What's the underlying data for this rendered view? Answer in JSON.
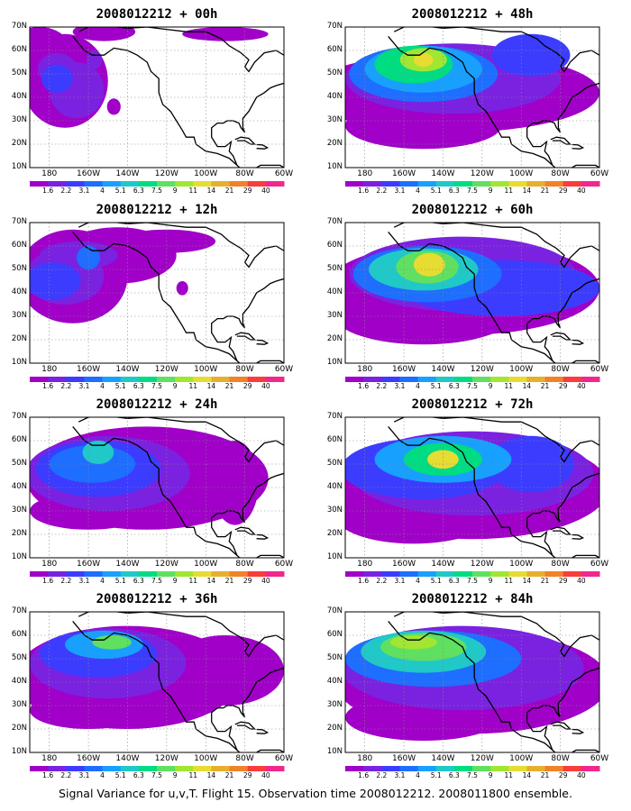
{
  "figure": {
    "caption": "Signal Variance for u,v,T. Flight 15. Observation time 2008012212. 2008011800 ensemble."
  },
  "chart_data": [
    {
      "type": "heatmap",
      "title": "2008012212 + 00h",
      "xlabel": "",
      "ylabel": "",
      "xlim": [
        -190,
        -60
      ],
      "ylim": [
        10,
        70
      ],
      "grid": true
    },
    {
      "type": "heatmap",
      "title": "2008012212 + 48h",
      "xlabel": "",
      "ylabel": "",
      "xlim": [
        -190,
        -60
      ],
      "ylim": [
        10,
        70
      ],
      "grid": true
    },
    {
      "type": "heatmap",
      "title": "2008012212 + 12h",
      "xlabel": "",
      "ylabel": "",
      "xlim": [
        -190,
        -60
      ],
      "ylim": [
        10,
        70
      ],
      "grid": true
    },
    {
      "type": "heatmap",
      "title": "2008012212 + 60h",
      "xlabel": "",
      "ylabel": "",
      "xlim": [
        -190,
        -60
      ],
      "ylim": [
        10,
        70
      ],
      "grid": true
    },
    {
      "type": "heatmap",
      "title": "2008012212 + 24h",
      "xlabel": "",
      "ylabel": "",
      "xlim": [
        -190,
        -60
      ],
      "ylim": [
        10,
        70
      ],
      "grid": true
    },
    {
      "type": "heatmap",
      "title": "2008012212 + 72h",
      "xlabel": "",
      "ylabel": "",
      "xlim": [
        -190,
        -60
      ],
      "ylim": [
        10,
        70
      ],
      "grid": true
    },
    {
      "type": "heatmap",
      "title": "2008012212 + 36h",
      "xlabel": "",
      "ylabel": "",
      "xlim": [
        -190,
        -60
      ],
      "ylim": [
        10,
        70
      ],
      "grid": true
    },
    {
      "type": "heatmap",
      "title": "2008012212 + 84h",
      "xlabel": "",
      "ylabel": "",
      "xlim": [
        -190,
        -60
      ],
      "ylim": [
        10,
        70
      ],
      "grid": true
    }
  ],
  "axes": {
    "lat_ticks": [
      "70N",
      "60N",
      "50N",
      "40N",
      "30N",
      "20N",
      "10N"
    ],
    "lat_values": [
      70,
      60,
      50,
      40,
      30,
      20,
      10
    ],
    "lon_ticks": [
      "180",
      "160W",
      "140W",
      "120W",
      "100W",
      "80W",
      "60W"
    ],
    "lon_values": [
      -180,
      -160,
      -140,
      -120,
      -100,
      -80,
      -60
    ]
  },
  "colorbar": {
    "labels": [
      "1.6",
      "2.2",
      "3.1",
      "4",
      "5.1",
      "6.3",
      "7.5",
      "9",
      "11",
      "14",
      "21",
      "29",
      "40"
    ],
    "colors": [
      "#a000c8",
      "#7a22e0",
      "#3c3cff",
      "#1e6eff",
      "#18a0ff",
      "#20c8c8",
      "#00dc82",
      "#60e060",
      "#a0e632",
      "#e6dc32",
      "#e6af2d",
      "#f08228",
      "#fa3c3c",
      "#f0288c"
    ]
  },
  "panels": [
    {
      "blobs": [
        {
          "lon": -172,
          "lat": 47,
          "rx": 22,
          "ry": 20,
          "level": 0
        },
        {
          "lon": -185,
          "lat": 60,
          "rx": 16,
          "ry": 10,
          "level": 0
        },
        {
          "lon": -152,
          "lat": 68,
          "rx": 16,
          "ry": 4,
          "level": 0
        },
        {
          "lon": -166,
          "lat": 43,
          "rx": 14,
          "ry": 12,
          "level": 1
        },
        {
          "lon": -176,
          "lat": 52,
          "rx": 10,
          "ry": 7,
          "level": 1
        },
        {
          "lon": -157,
          "lat": 56,
          "rx": 4,
          "ry": 4,
          "level": 1
        },
        {
          "lon": -176,
          "lat": 48,
          "rx": 8,
          "ry": 6,
          "level": 2
        },
        {
          "lon": -147,
          "lat": 36,
          "rx": 3.5,
          "ry": 3.5,
          "level": 0
        },
        {
          "lon": -90,
          "lat": 67,
          "rx": 22,
          "ry": 3,
          "level": 0
        }
      ]
    },
    {
      "blobs": [
        {
          "lon": -135,
          "lat": 42,
          "rx": 75,
          "ry": 17,
          "level": 0
        },
        {
          "lon": -150,
          "lat": 28,
          "rx": 40,
          "ry": 10,
          "level": 0
        },
        {
          "lon": -135,
          "lat": 48,
          "rx": 55,
          "ry": 15,
          "level": 1
        },
        {
          "lon": -150,
          "lat": 50,
          "rx": 38,
          "ry": 12,
          "level": 3
        },
        {
          "lon": -150,
          "lat": 52,
          "rx": 30,
          "ry": 10,
          "level": 4
        },
        {
          "lon": -155,
          "lat": 54,
          "rx": 20,
          "ry": 8,
          "level": 6
        },
        {
          "lon": -150,
          "lat": 56,
          "rx": 12,
          "ry": 5,
          "level": 8
        },
        {
          "lon": -150,
          "lat": 56,
          "rx": 5,
          "ry": 3,
          "level": 9
        },
        {
          "lon": -95,
          "lat": 58,
          "rx": 20,
          "ry": 9,
          "level": 2
        }
      ]
    },
    {
      "blobs": [
        {
          "lon": -168,
          "lat": 47,
          "rx": 28,
          "ry": 20,
          "level": 0
        },
        {
          "lon": -145,
          "lat": 56,
          "rx": 30,
          "ry": 12,
          "level": 0
        },
        {
          "lon": -120,
          "lat": 62,
          "rx": 25,
          "ry": 5,
          "level": 0
        },
        {
          "lon": -172,
          "lat": 47,
          "rx": 20,
          "ry": 12,
          "level": 1
        },
        {
          "lon": -165,
          "lat": 56,
          "rx": 20,
          "ry": 6,
          "level": 1
        },
        {
          "lon": -178,
          "lat": 45,
          "rx": 14,
          "ry": 8,
          "level": 2
        },
        {
          "lon": -160,
          "lat": 55,
          "rx": 6,
          "ry": 5,
          "level": 3
        },
        {
          "lon": -112,
          "lat": 42,
          "rx": 3,
          "ry": 3,
          "level": 0
        }
      ]
    },
    {
      "blobs": [
        {
          "lon": -130,
          "lat": 42,
          "rx": 70,
          "ry": 20,
          "level": 0
        },
        {
          "lon": -150,
          "lat": 30,
          "rx": 45,
          "ry": 12,
          "level": 0
        },
        {
          "lon": -130,
          "lat": 48,
          "rx": 58,
          "ry": 16,
          "level": 1
        },
        {
          "lon": -110,
          "lat": 42,
          "rx": 50,
          "ry": 12,
          "level": 2
        },
        {
          "lon": -148,
          "lat": 48,
          "rx": 38,
          "ry": 12,
          "level": 3
        },
        {
          "lon": -150,
          "lat": 50,
          "rx": 28,
          "ry": 9,
          "level": 5
        },
        {
          "lon": -148,
          "lat": 51,
          "rx": 16,
          "ry": 7,
          "level": 7
        },
        {
          "lon": -147,
          "lat": 52,
          "rx": 8,
          "ry": 5,
          "level": 9
        }
      ]
    },
    {
      "blobs": [
        {
          "lon": -130,
          "lat": 44,
          "rx": 62,
          "ry": 22,
          "level": 0
        },
        {
          "lon": -160,
          "lat": 30,
          "rx": 30,
          "ry": 8,
          "level": 0
        },
        {
          "lon": -85,
          "lat": 42,
          "rx": 12,
          "ry": 18,
          "level": 0
        },
        {
          "lon": -150,
          "lat": 46,
          "rx": 42,
          "ry": 16,
          "level": 1
        },
        {
          "lon": -155,
          "lat": 48,
          "rx": 32,
          "ry": 12,
          "level": 2
        },
        {
          "lon": -158,
          "lat": 50,
          "rx": 22,
          "ry": 8,
          "level": 3
        },
        {
          "lon": -155,
          "lat": 55,
          "rx": 8,
          "ry": 5,
          "level": 5
        }
      ]
    },
    {
      "blobs": [
        {
          "lon": -125,
          "lat": 40,
          "rx": 70,
          "ry": 22,
          "level": 0
        },
        {
          "lon": -155,
          "lat": 28,
          "rx": 40,
          "ry": 12,
          "level": 0
        },
        {
          "lon": -125,
          "lat": 46,
          "rx": 62,
          "ry": 18,
          "level": 1
        },
        {
          "lon": -150,
          "lat": 48,
          "rx": 42,
          "ry": 13,
          "level": 2
        },
        {
          "lon": -95,
          "lat": 50,
          "rx": 22,
          "ry": 12,
          "level": 2
        },
        {
          "lon": -140,
          "lat": 52,
          "rx": 35,
          "ry": 10,
          "level": 4
        },
        {
          "lon": -140,
          "lat": 52,
          "rx": 20,
          "ry": 7,
          "level": 6
        },
        {
          "lon": -140,
          "lat": 52,
          "rx": 8,
          "ry": 4,
          "level": 9
        }
      ]
    },
    {
      "blobs": [
        {
          "lon": -140,
          "lat": 42,
          "rx": 58,
          "ry": 22,
          "level": 0
        },
        {
          "lon": -90,
          "lat": 45,
          "rx": 30,
          "ry": 15,
          "level": 0
        },
        {
          "lon": -160,
          "lat": 28,
          "rx": 30,
          "ry": 8,
          "level": 0
        },
        {
          "lon": -150,
          "lat": 48,
          "rx": 40,
          "ry": 15,
          "level": 1
        },
        {
          "lon": -155,
          "lat": 52,
          "rx": 30,
          "ry": 10,
          "level": 2
        },
        {
          "lon": -152,
          "lat": 56,
          "rx": 20,
          "ry": 6,
          "level": 4
        },
        {
          "lon": -148,
          "lat": 57,
          "rx": 10,
          "ry": 3,
          "level": 7
        }
      ]
    },
    {
      "blobs": [
        {
          "lon": -125,
          "lat": 40,
          "rx": 70,
          "ry": 22,
          "level": 0
        },
        {
          "lon": -150,
          "lat": 25,
          "rx": 40,
          "ry": 10,
          "level": 0
        },
        {
          "lon": -130,
          "lat": 46,
          "rx": 62,
          "ry": 18,
          "level": 1
        },
        {
          "lon": -145,
          "lat": 50,
          "rx": 45,
          "ry": 12,
          "level": 3
        },
        {
          "lon": -150,
          "lat": 53,
          "rx": 32,
          "ry": 9,
          "level": 5
        },
        {
          "lon": -150,
          "lat": 55,
          "rx": 22,
          "ry": 6,
          "level": 7
        },
        {
          "lon": -155,
          "lat": 57,
          "rx": 12,
          "ry": 3,
          "level": 8
        }
      ]
    }
  ]
}
